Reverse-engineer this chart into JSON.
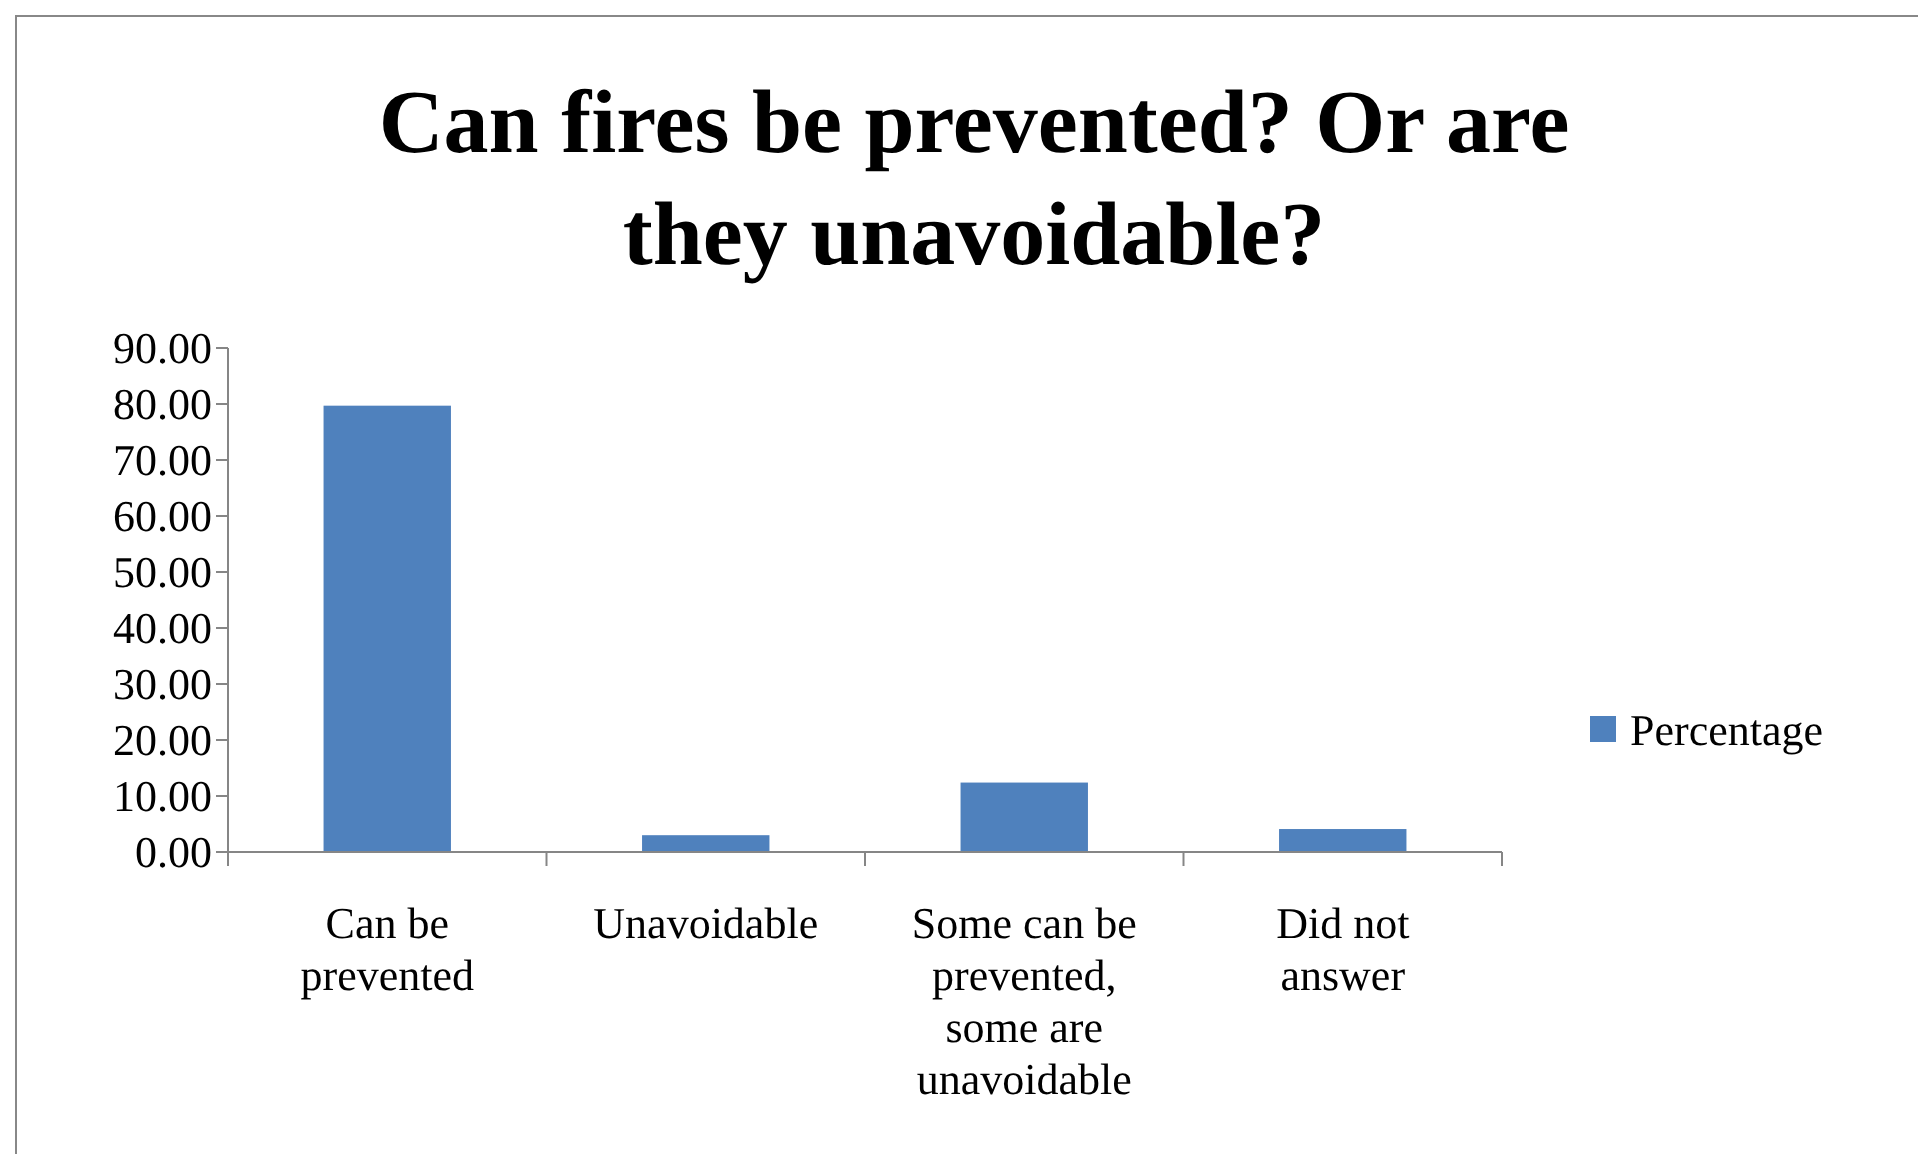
{
  "chart_data": {
    "type": "bar",
    "title": "Can fires be prevented? Or are they unavoidable?",
    "categories": [
      "Can be prevented",
      "Unavoidable",
      "Some can be prevented, some are unavoidable",
      "Did not answer"
    ],
    "series": [
      {
        "name": "Percentage",
        "color": "#4f81bd",
        "values": [
          79.7,
          3.0,
          12.4,
          4.1
        ]
      }
    ],
    "ylim": [
      0,
      90
    ],
    "yticks": [
      {
        "value": 0,
        "label": "0.00"
      },
      {
        "value": 10,
        "label": "10.00"
      },
      {
        "value": 20,
        "label": "20.00"
      },
      {
        "value": 30,
        "label": "30.00"
      },
      {
        "value": 40,
        "label": "40.00"
      },
      {
        "value": 50,
        "label": "50.00"
      },
      {
        "value": 60,
        "label": "60.00"
      },
      {
        "value": 70,
        "label": "70.00"
      },
      {
        "value": 80,
        "label": "80.00"
      },
      {
        "value": 90,
        "label": "90.00"
      }
    ],
    "grid": false,
    "legend": "right"
  }
}
